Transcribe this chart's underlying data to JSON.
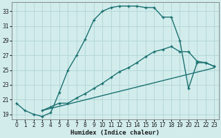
{
  "xlabel": "Humidex (Indice chaleur)",
  "xlim": [
    -0.5,
    23.5
  ],
  "ylim": [
    18.3,
    34.2
  ],
  "xticks": [
    0,
    1,
    2,
    3,
    4,
    5,
    6,
    7,
    8,
    9,
    10,
    11,
    12,
    13,
    14,
    15,
    16,
    17,
    18,
    19,
    20,
    21,
    22,
    23
  ],
  "yticks": [
    19,
    21,
    23,
    25,
    27,
    29,
    31,
    33
  ],
  "background_color": "#d2ecec",
  "grid_color": "#b0d4d4",
  "line_color": "#1a7070",
  "line1_x": [
    0,
    1,
    2,
    3,
    4,
    5,
    6,
    7,
    8,
    9,
    10,
    11,
    12,
    13,
    14,
    15,
    16,
    17,
    18,
    19,
    20,
    21,
    22,
    23
  ],
  "line1_y": [
    20.5,
    19.5,
    19.0,
    18.7,
    19.2,
    22.0,
    25.0,
    27.0,
    29.2,
    31.8,
    33.0,
    33.5,
    33.7,
    33.7,
    33.7,
    33.5,
    33.5,
    32.2,
    32.2,
    29.0,
    22.5,
    26.0,
    26.0,
    25.5
  ],
  "line2_x": [
    3,
    4,
    5,
    6,
    7,
    8,
    9,
    10,
    11,
    12,
    13,
    14,
    15,
    16,
    17,
    18,
    19,
    20,
    21,
    22,
    23
  ],
  "line2_y": [
    19.5,
    20.0,
    20.5,
    20.5,
    21.2,
    21.8,
    22.5,
    23.2,
    24.0,
    24.8,
    25.3,
    26.0,
    26.8,
    27.5,
    27.8,
    28.2,
    27.5,
    27.5,
    26.2,
    26.0,
    25.5
  ],
  "line3_x": [
    3,
    23
  ],
  "line3_y": [
    19.5,
    25.3
  ]
}
